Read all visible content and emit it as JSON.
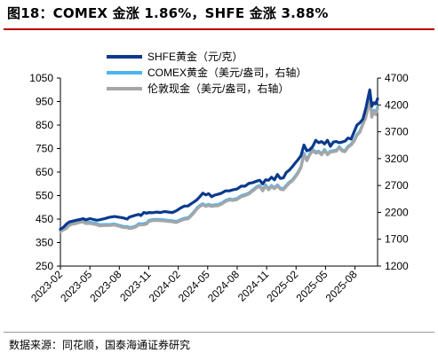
{
  "header": {
    "title": "图18：COMEX 金涨 1.86%，SHFE 金涨 3.88%"
  },
  "footer": {
    "source": "数据来源：同花顺，国泰海通证券研究"
  },
  "chart_data": {
    "type": "line",
    "title": "",
    "xlabel": "",
    "ylabel_left": "",
    "ylabel_right": "",
    "x_tick_labels": [
      "2023-02",
      "2023-05",
      "2023-08",
      "2023-11",
      "2024-02",
      "2024-05",
      "2024-08",
      "2024-11",
      "2025-02",
      "2025-05",
      "2025-08"
    ],
    "x_months": [
      0,
      3,
      6,
      9,
      12,
      15,
      18,
      21,
      24,
      27,
      30
    ],
    "x_range": [
      0,
      32.3
    ],
    "ylim_left": [
      250,
      1050
    ],
    "yticks_left": [
      250,
      350,
      450,
      550,
      650,
      750,
      850,
      950,
      1050
    ],
    "ylim_right": [
      1200,
      4700
    ],
    "yticks_right": [
      1200,
      1700,
      2200,
      2700,
      3200,
      3700,
      4200,
      4700
    ],
    "legend_position": "top-right",
    "grid": false,
    "series": [
      {
        "name": "SHFE黄金（元/克）",
        "axis": "left",
        "color": "#0a3a8c",
        "x": [
          0,
          0.3,
          0.6,
          0.9,
          1.2,
          1.6,
          2.0,
          2.3,
          2.6,
          3.0,
          3.4,
          3.7,
          4.0,
          4.5,
          5.0,
          5.5,
          6.0,
          6.4,
          6.8,
          7.0,
          7.3,
          7.7,
          8.0,
          8.2,
          8.5,
          8.8,
          9.0,
          9.4,
          9.8,
          10.2,
          10.6,
          11.0,
          11.4,
          11.8,
          12.2,
          12.6,
          13.0,
          13.3,
          13.6,
          13.9,
          14.2,
          14.5,
          14.8,
          15.1,
          15.4,
          15.7,
          16.0,
          16.4,
          16.8,
          17.2,
          17.6,
          18.0,
          18.4,
          18.8,
          19.2,
          19.6,
          20.0,
          20.3,
          20.6,
          20.9,
          21.2,
          21.5,
          21.8,
          22.1,
          22.4,
          22.7,
          23.0,
          23.3,
          23.6,
          23.9,
          24.2,
          24.5,
          24.8,
          25.1,
          25.4,
          25.7,
          26.0,
          26.3,
          26.6,
          26.9,
          27.2,
          27.5,
          27.8,
          28.1,
          28.4,
          28.7,
          29.0,
          29.3,
          29.6,
          29.9,
          30.2,
          30.5,
          30.8,
          31.1,
          31.3,
          31.5,
          31.7,
          31.9,
          32.1,
          32.3
        ],
        "values": [
          407,
          415,
          428,
          438,
          441,
          445,
          448,
          452,
          447,
          452,
          448,
          445,
          447,
          452,
          458,
          461,
          458,
          455,
          450,
          458,
          462,
          467,
          470,
          465,
          478,
          475,
          478,
          477,
          480,
          478,
          482,
          480,
          478,
          485,
          496,
          505,
          506,
          515,
          523,
          532,
          545,
          560,
          553,
          558,
          545,
          552,
          555,
          560,
          570,
          570,
          575,
          578,
          590,
          590,
          602,
          605,
          612,
          615,
          600,
          617,
          615,
          628,
          617,
          640,
          623,
          625,
          648,
          658,
          672,
          688,
          703,
          720,
          765,
          740,
          745,
          760,
          785,
          775,
          780,
          770,
          785,
          760,
          778,
          780,
          775,
          778,
          782,
          795,
          790,
          820,
          850,
          860,
          875,
          920,
          960,
          1000,
          930,
          945,
          940,
          962
        ]
      },
      {
        "name": "COMEX黄金（美元/盎司，右轴）",
        "axis": "right",
        "color": "#4fb3f0",
        "x": [
          0,
          0.3,
          0.6,
          0.9,
          1.2,
          1.6,
          2.0,
          2.3,
          2.6,
          3.0,
          3.4,
          3.7,
          4.0,
          4.5,
          5.0,
          5.5,
          6.0,
          6.4,
          6.8,
          7.0,
          7.3,
          7.7,
          8.0,
          8.2,
          8.5,
          8.8,
          9.0,
          9.4,
          9.8,
          10.2,
          10.6,
          11.0,
          11.4,
          11.8,
          12.2,
          12.6,
          13.0,
          13.3,
          13.6,
          13.9,
          14.2,
          14.5,
          14.8,
          15.1,
          15.4,
          15.7,
          16.0,
          16.4,
          16.8,
          17.2,
          17.6,
          18.0,
          18.4,
          18.8,
          19.2,
          19.6,
          20.0,
          20.3,
          20.6,
          20.9,
          21.2,
          21.5,
          21.8,
          22.1,
          22.4,
          22.7,
          23.0,
          23.3,
          23.6,
          23.9,
          24.2,
          24.5,
          24.8,
          25.1,
          25.4,
          25.7,
          26.0,
          26.3,
          26.6,
          26.9,
          27.2,
          27.5,
          27.8,
          28.1,
          28.4,
          28.7,
          29.0,
          29.3,
          29.6,
          29.9,
          30.2,
          30.5,
          30.8,
          31.1,
          31.3,
          31.5,
          31.7,
          31.9,
          32.1,
          32.3
        ],
        "values": [
          1860,
          1890,
          1920,
          1975,
          2000,
          2010,
          2035,
          2040,
          2010,
          2015,
          2000,
          1990,
          1970,
          1975,
          1975,
          1985,
          1960,
          1940,
          1935,
          1920,
          1925,
          1950,
          1990,
          1985,
          1990,
          2005,
          2050,
          2065,
          2070,
          2065,
          2060,
          2050,
          2045,
          2030,
          2060,
          2090,
          2100,
          2150,
          2210,
          2280,
          2330,
          2360,
          2330,
          2350,
          2330,
          2340,
          2340,
          2370,
          2420,
          2450,
          2440,
          2460,
          2510,
          2530,
          2560,
          2620,
          2680,
          2700,
          2620,
          2710,
          2640,
          2700,
          2660,
          2710,
          2650,
          2640,
          2700,
          2760,
          2800,
          2870,
          2950,
          3050,
          3300,
          3180,
          3290,
          3370,
          3320,
          3340,
          3290,
          3370,
          3290,
          3340,
          3350,
          3360,
          3420,
          3360,
          3350,
          3430,
          3470,
          3540,
          3650,
          3710,
          3850,
          3990,
          4150,
          4380,
          4000,
          4100,
          4050,
          4160
        ]
      },
      {
        "name": "伦敦现金（美元/盎司，右轴）",
        "axis": "right",
        "color": "#a6a6a6",
        "x": [
          0,
          0.3,
          0.6,
          0.9,
          1.2,
          1.6,
          2.0,
          2.3,
          2.6,
          3.0,
          3.4,
          3.7,
          4.0,
          4.5,
          5.0,
          5.5,
          6.0,
          6.4,
          6.8,
          7.0,
          7.3,
          7.7,
          8.0,
          8.2,
          8.5,
          8.8,
          9.0,
          9.4,
          9.8,
          10.2,
          10.6,
          11.0,
          11.4,
          11.8,
          12.2,
          12.6,
          13.0,
          13.3,
          13.6,
          13.9,
          14.2,
          14.5,
          14.8,
          15.1,
          15.4,
          15.7,
          16.0,
          16.4,
          16.8,
          17.2,
          17.6,
          18.0,
          18.4,
          18.8,
          19.2,
          19.6,
          20.0,
          20.3,
          20.6,
          20.9,
          21.2,
          21.5,
          21.8,
          22.1,
          22.4,
          22.7,
          23.0,
          23.3,
          23.6,
          23.9,
          24.2,
          24.5,
          24.8,
          25.1,
          25.4,
          25.7,
          26.0,
          26.3,
          26.6,
          26.9,
          27.2,
          27.5,
          27.8,
          28.1,
          28.4,
          28.7,
          29.0,
          29.3,
          29.6,
          29.9,
          30.2,
          30.5,
          30.8,
          31.1,
          31.3,
          31.5,
          31.7,
          31.9,
          32.1,
          32.3
        ],
        "values": [
          1840,
          1870,
          1900,
          1955,
          1980,
          1990,
          2015,
          2020,
          1990,
          1995,
          1980,
          1970,
          1950,
          1955,
          1955,
          1965,
          1940,
          1920,
          1915,
          1900,
          1905,
          1930,
          1970,
          1965,
          1970,
          1985,
          2030,
          2045,
          2050,
          2045,
          2040,
          2030,
          2025,
          2010,
          2040,
          2070,
          2080,
          2130,
          2190,
          2260,
          2310,
          2340,
          2310,
          2330,
          2310,
          2320,
          2320,
          2350,
          2400,
          2430,
          2420,
          2440,
          2490,
          2510,
          2540,
          2600,
          2660,
          2680,
          2600,
          2690,
          2620,
          2680,
          2640,
          2690,
          2630,
          2620,
          2680,
          2740,
          2780,
          2850,
          2930,
          3030,
          3270,
          3160,
          3270,
          3350,
          3300,
          3320,
          3270,
          3350,
          3270,
          3320,
          3330,
          3340,
          3400,
          3340,
          3330,
          3410,
          3450,
          3520,
          3630,
          3690,
          3830,
          3960,
          4110,
          4340,
          3970,
          4070,
          4020,
          4130
        ]
      }
    ]
  }
}
